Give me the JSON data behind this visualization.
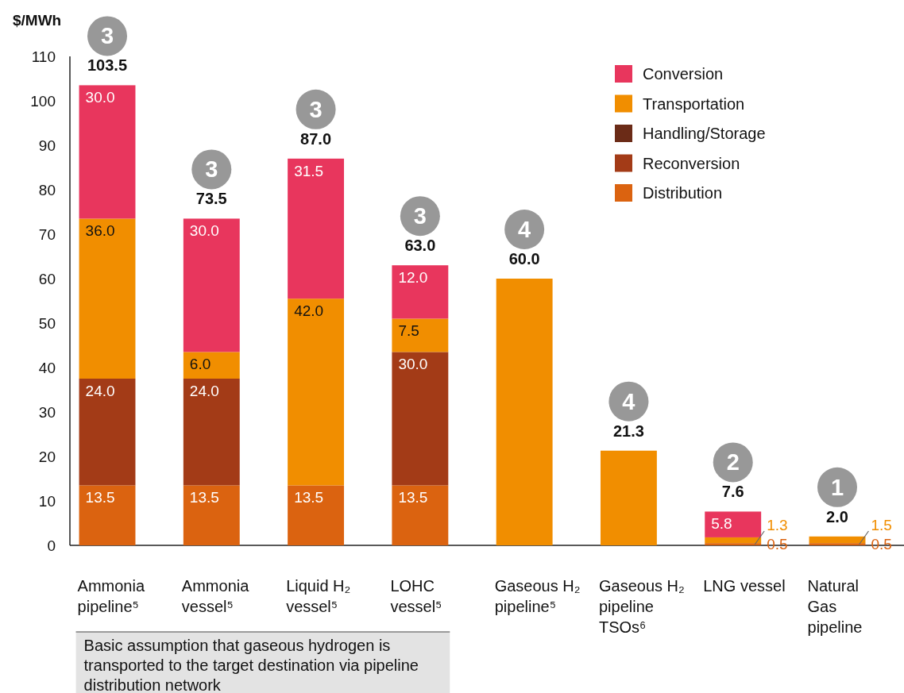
{
  "chart_data": {
    "type": "bar",
    "stacked": true,
    "ylabel": "$/MWh",
    "categories": [
      "Ammonia pipeline⁵",
      "Ammonia vessel⁵",
      "Liquid H₂ vessel⁵",
      "LOHC vessel⁵",
      "Gaseous H₂ pipeline⁵",
      "Gaseous H₂ pipeline TSOs⁶",
      "LNG vessel",
      "Natural Gas pipeline"
    ],
    "series": [
      {
        "name": "Distribution",
        "color": "#db6310",
        "values": [
          13.5,
          13.5,
          13.5,
          13.5,
          null,
          null,
          0.5,
          0.5
        ],
        "value_labels": [
          "13.5",
          "13.5",
          "13.5",
          "13.5",
          null,
          null,
          "0.5",
          "0.5"
        ]
      },
      {
        "name": "Reconversion",
        "color": "#a33b17",
        "values": [
          24.0,
          24.0,
          null,
          30.0,
          null,
          null,
          null,
          null
        ],
        "value_labels": [
          "24.0",
          "24.0",
          null,
          "30.0",
          null,
          null,
          null,
          null
        ]
      },
      {
        "name": "Handling/Storage",
        "color": "#6b2b17",
        "values": [
          null,
          null,
          null,
          null,
          null,
          null,
          null,
          null
        ]
      },
      {
        "name": "Transportation",
        "color": "#f18e00",
        "values": [
          36.0,
          6.0,
          42.0,
          7.5,
          60.0,
          21.3,
          1.3,
          1.5
        ],
        "value_labels": [
          "36.0",
          "6.0",
          "42.0",
          "7.5",
          null,
          null,
          "1.3",
          "1.5"
        ]
      },
      {
        "name": "Conversion",
        "color": "#e8365d",
        "values": [
          30.0,
          30.0,
          31.5,
          12.0,
          null,
          null,
          5.8,
          null
        ],
        "value_labels": [
          "30.0",
          "30.0",
          "31.5",
          "12.0",
          null,
          null,
          "5.8",
          null
        ]
      }
    ],
    "totals": [
      "103.5",
      "73.5",
      "87.0",
      "63.0",
      "60.0",
      "21.3",
      "7.6",
      "2.0"
    ],
    "ylim": [
      0,
      110
    ],
    "yticks": [
      0,
      10,
      20,
      30,
      40,
      50,
      60,
      70,
      80,
      90,
      100,
      110
    ],
    "legend": "top right",
    "grid": false,
    "annotations": [
      "3",
      "3",
      "3",
      "3",
      "4",
      "4",
      "2",
      "1",
      "Basic assumption that gaseous hydrogen is transported to the target destination via pipeline distribution network"
    ]
  }
}
